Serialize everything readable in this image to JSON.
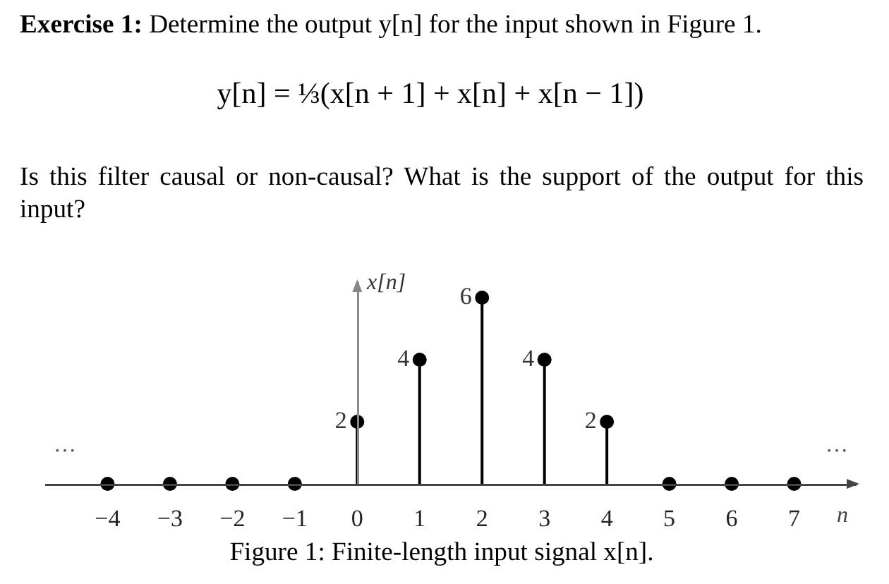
{
  "chart_data": {
    "type": "lollipop",
    "title": "Exercise 1: Determine the output y[n] for the input shown in Figure 1.",
    "subtitle": "y[n] = ⅓(x[n + 1] + x[n] + x[n − 1])",
    "xlabel": "n",
    "ylabel": "x[n]",
    "x": [
      -4,
      -3,
      -2,
      -1,
      0,
      1,
      2,
      3,
      4,
      5,
      6,
      7
    ],
    "values": [
      0,
      0,
      0,
      0,
      2,
      4,
      6,
      4,
      2,
      0,
      0,
      0
    ],
    "value_labels": [
      null,
      null,
      null,
      null,
      "2",
      "4",
      "6",
      "4",
      "2",
      null,
      null,
      null
    ],
    "color": "#000000",
    "marker": "circle",
    "xlim": [
      -5,
      8
    ],
    "xticks": [
      {
        "value": -4,
        "label": "−4"
      },
      {
        "value": -3,
        "label": "−3"
      },
      {
        "value": -2,
        "label": "−2"
      },
      {
        "value": -1,
        "label": "−1"
      },
      0,
      1,
      2,
      3,
      4,
      5,
      6,
      7
    ],
    "ylim": [
      0,
      6.5
    ],
    "tick_labels": "x",
    "annotations": [
      "Is this filter causal or non-causal? What is the support of the output for this input?",
      "…",
      "…",
      "Figure 1: Finite-length input signal x[n]."
    ]
  }
}
